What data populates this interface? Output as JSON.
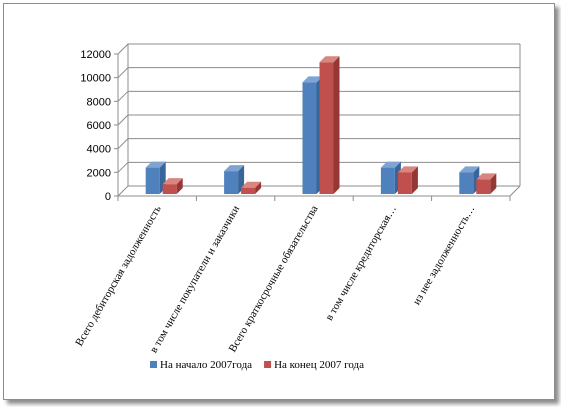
{
  "chart_data": {
    "type": "bar",
    "categories": [
      "Всего дебиторская задолженность",
      "в том числе покупатели и заказчики",
      "Всего краткосрочные обязательства",
      "в том числе  кредиторская…",
      "из нее задолженность…"
    ],
    "series": [
      {
        "name": "На начало 2007года",
        "values": [
          2400,
          2100,
          9600,
          2400,
          2000
        ],
        "color": "#4f81bd",
        "top": "#7fa4d4",
        "side": "#38659a"
      },
      {
        "name": "На конец  2007 года",
        "values": [
          1000,
          700,
          11300,
          2000,
          1400
        ],
        "color": "#c0504d",
        "top": "#d98580",
        "side": "#953735"
      }
    ],
    "yticks": [
      "0",
      "2000",
      "4000",
      "6000",
      "8000",
      "10000",
      "12000"
    ],
    "ylim": [
      0,
      12000
    ],
    "grid": true,
    "legend": "bottom"
  }
}
